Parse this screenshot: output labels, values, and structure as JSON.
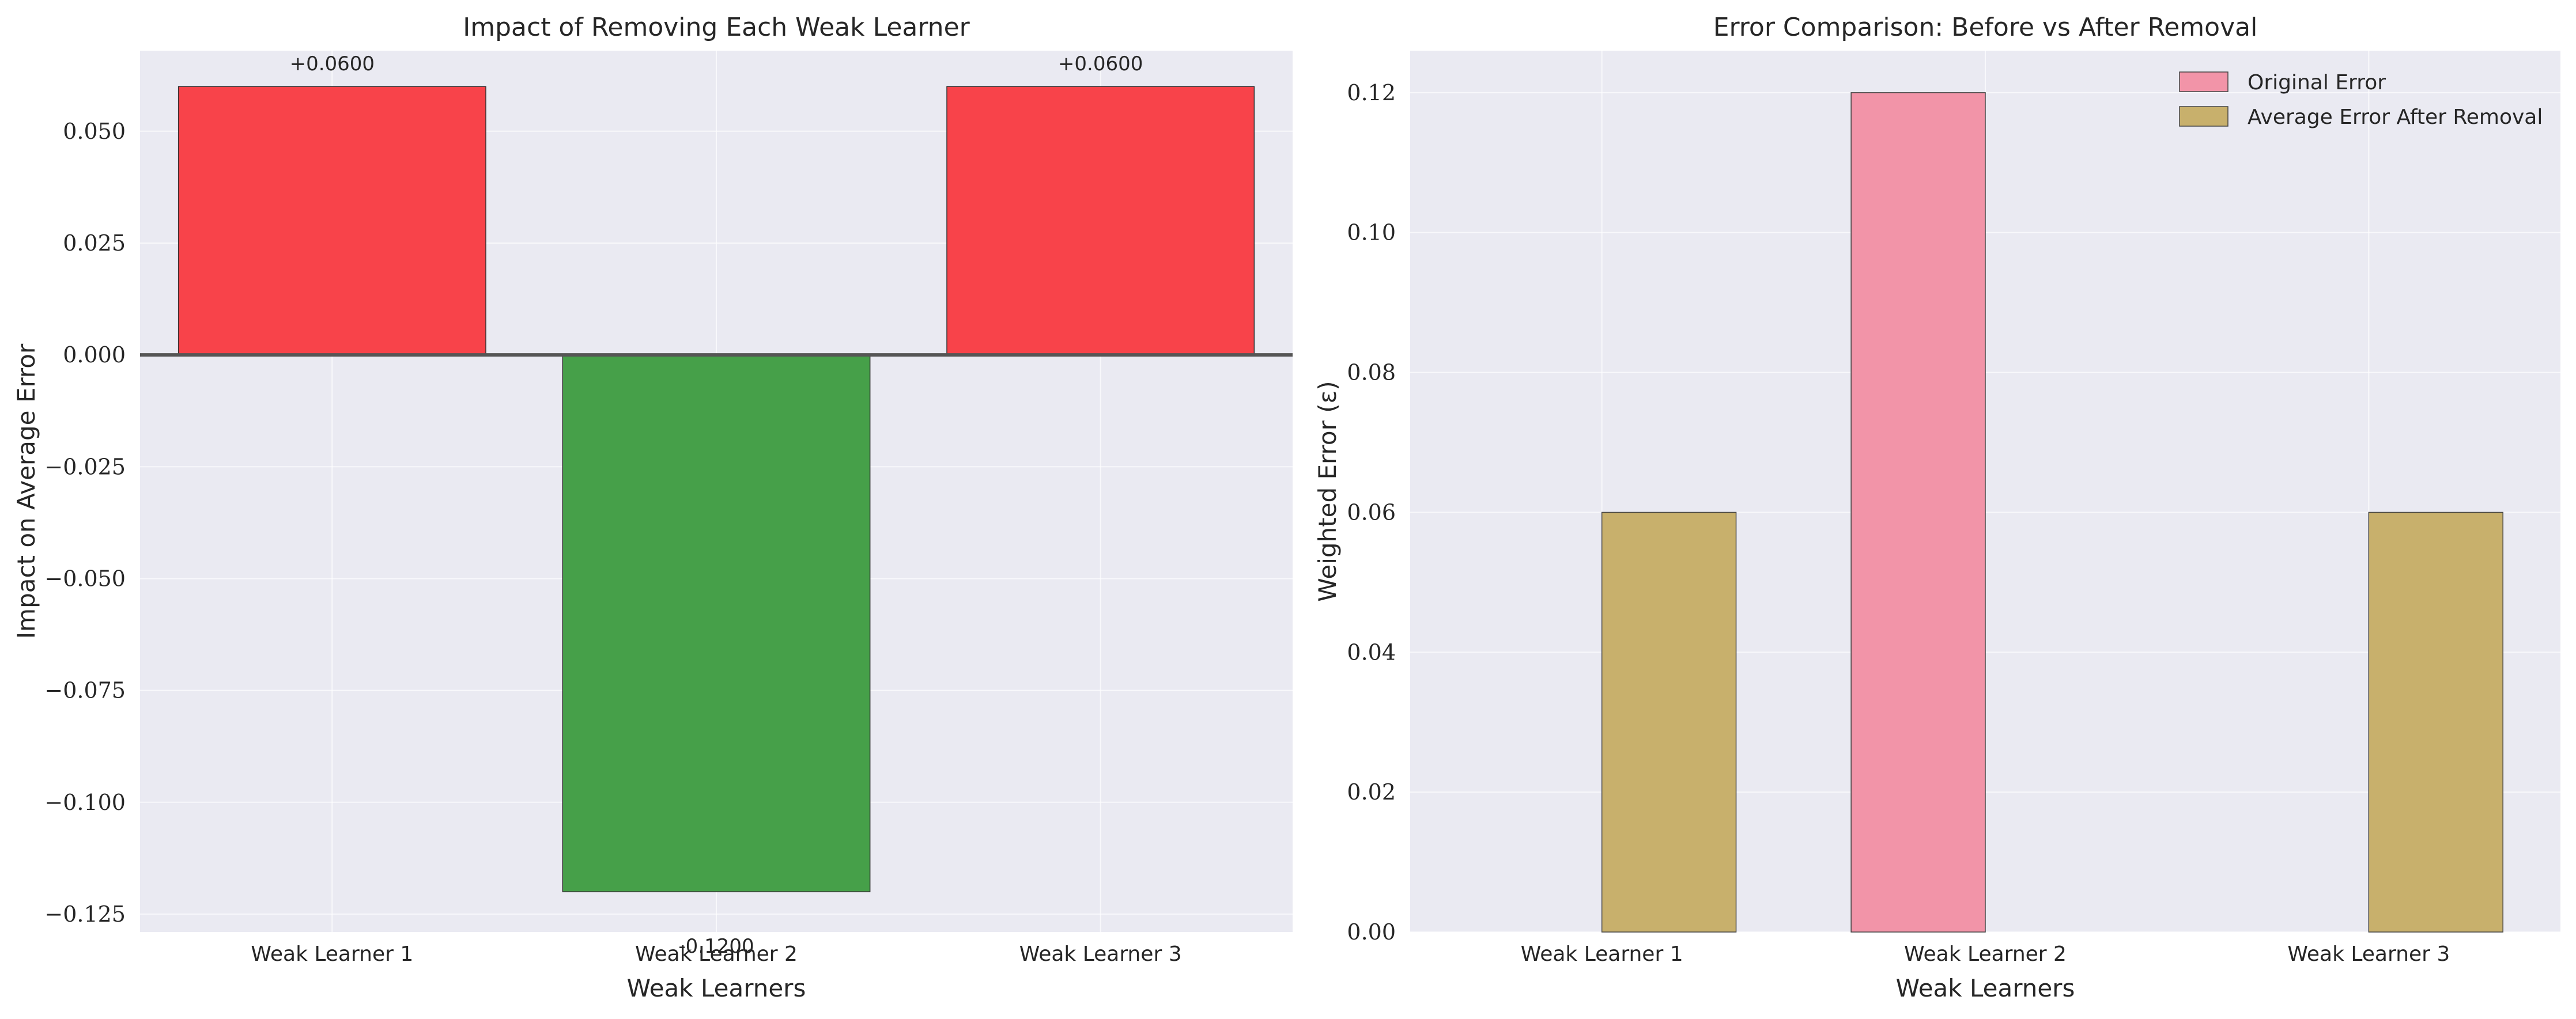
{
  "chart_data": [
    {
      "type": "bar",
      "title": "Impact of Removing Each Weak Learner",
      "xlabel": "Weak Learners",
      "ylabel": "Impact on Average Error",
      "categories": [
        "Weak Learner 1",
        "Weak Learner 2",
        "Weak Learner 3"
      ],
      "values": [
        0.06,
        -0.12,
        0.06
      ],
      "data_labels": [
        "+0.0600",
        "-0.1200",
        "+0.0600"
      ],
      "colors": [
        "#f8434a",
        "#46a049",
        "#f8434a"
      ],
      "ylim": [
        -0.129,
        0.068
      ],
      "yticks": [
        -0.125,
        -0.1,
        -0.075,
        -0.05,
        -0.025,
        0.0,
        0.025,
        0.05
      ],
      "ytick_labels": [
        "−0.125",
        "−0.100",
        "−0.075",
        "−0.050",
        "−0.025",
        "0.000",
        "0.025",
        "0.050"
      ],
      "zero_line": true,
      "grid": true
    },
    {
      "type": "bar",
      "title": "Error Comparison: Before vs After Removal",
      "xlabel": "Weak Learners",
      "ylabel": "Weighted Error (ε)",
      "categories": [
        "Weak Learner 1",
        "Weak Learner 2",
        "Weak Learner 3"
      ],
      "series": [
        {
          "name": "Original Error",
          "values": [
            0.0,
            0.12,
            0.0
          ],
          "color": "#f294a8"
        },
        {
          "name": "Average Error After Removal",
          "values": [
            0.06,
            0.0,
            0.06
          ],
          "color": "#c8b06c"
        }
      ],
      "ylim": [
        0.0,
        0.126
      ],
      "yticks": [
        0.0,
        0.02,
        0.04,
        0.06,
        0.08,
        0.1,
        0.12
      ],
      "ytick_labels": [
        "0.00",
        "0.02",
        "0.04",
        "0.06",
        "0.08",
        "0.10",
        "0.12"
      ],
      "legend_position": "top-right",
      "grid": true
    }
  ]
}
